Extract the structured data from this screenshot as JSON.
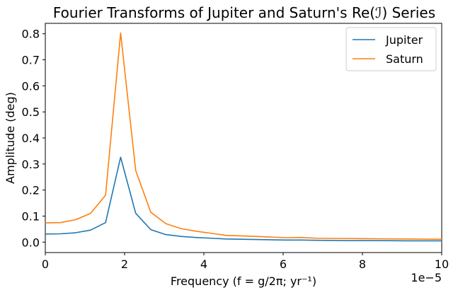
{
  "chart_data": {
    "type": "line",
    "title": "Fourier Transforms of Jupiter and Saturn's Re(ℐ) Series",
    "xlabel": "Frequency (f = g/2π; yr⁻¹)",
    "ylabel": "Amplitude (deg)",
    "x_offset_label": "1e−5",
    "xlim": [
      0,
      10
    ],
    "ylim": [
      -0.04,
      0.84
    ],
    "x_ticks": [
      0,
      2,
      4,
      6,
      8,
      10
    ],
    "x_tick_labels": [
      "0",
      "2",
      "4",
      "6",
      "8",
      "10"
    ],
    "y_ticks": [
      0.0,
      0.1,
      0.2,
      0.3,
      0.4,
      0.5,
      0.6,
      0.7,
      0.8
    ],
    "y_tick_labels": [
      "0.0",
      "0.1",
      "0.2",
      "0.3",
      "0.4",
      "0.5",
      "0.6",
      "0.7",
      "0.8"
    ],
    "grid": false,
    "legend_position": "top-right",
    "series": [
      {
        "name": "Jupiter",
        "color": "#1f77b4",
        "x": [
          0,
          0.38,
          0.76,
          1.14,
          1.52,
          1.9,
          2.28,
          2.66,
          3.04,
          3.42,
          3.8,
          4.18,
          4.56,
          5.32,
          6.08,
          6.46,
          6.84,
          7.6,
          8.36,
          9.12,
          10
        ],
        "y": [
          0.031,
          0.032,
          0.036,
          0.046,
          0.075,
          0.326,
          0.111,
          0.048,
          0.029,
          0.022,
          0.018,
          0.015,
          0.012,
          0.01,
          0.008,
          0.008,
          0.007,
          0.006,
          0.006,
          0.005,
          0.005
        ]
      },
      {
        "name": "Saturn",
        "color": "#ff7f0e",
        "x": [
          0,
          0.38,
          0.76,
          1.14,
          1.52,
          1.9,
          2.28,
          2.66,
          3.04,
          3.42,
          3.8,
          4.18,
          4.56,
          5.32,
          6.08,
          6.46,
          6.84,
          7.6,
          8.36,
          9.12,
          10
        ],
        "y": [
          0.074,
          0.075,
          0.086,
          0.11,
          0.18,
          0.803,
          0.275,
          0.115,
          0.071,
          0.052,
          0.042,
          0.034,
          0.026,
          0.022,
          0.017,
          0.018,
          0.015,
          0.014,
          0.013,
          0.012,
          0.011
        ]
      }
    ]
  }
}
